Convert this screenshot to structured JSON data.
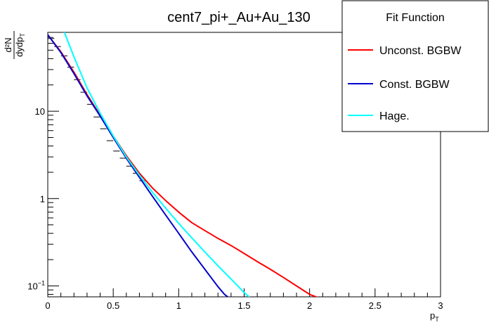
{
  "chart_data": {
    "type": "line",
    "title": "cent7_pi+_Au+Au_130",
    "xlabel_main": "p",
    "xlabel_sub": "T",
    "ylabel_num": "d²N",
    "ylabel_den_main": "dydp",
    "ylabel_den_sub": "T",
    "xlim": [
      0,
      3
    ],
    "ylim": [
      0.075,
      80
    ],
    "yscale": "log",
    "x_ticks": [
      {
        "value": 0,
        "label": "0"
      },
      {
        "value": 0.5,
        "label": "0.5"
      },
      {
        "value": 1,
        "label": "1"
      },
      {
        "value": 1.5,
        "label": "1.5"
      },
      {
        "value": 2,
        "label": "2"
      },
      {
        "value": 2.5,
        "label": "2.5"
      },
      {
        "value": 3,
        "label": "3"
      }
    ],
    "y_ticks": [
      {
        "value": 0.1,
        "label_main": "10",
        "label_sup": "−1"
      },
      {
        "value": 1,
        "label_main": "1",
        "label_sup": ""
      },
      {
        "value": 10,
        "label_main": "10",
        "label_sup": ""
      }
    ],
    "legend": {
      "title": "Fit Function",
      "position": "top-right"
    },
    "data_points": {
      "x": [
        0.025,
        0.075,
        0.125,
        0.175,
        0.225,
        0.275,
        0.325,
        0.375,
        0.425,
        0.475,
        0.525,
        0.575,
        0.625,
        0.675,
        0.725
      ],
      "y": [
        68,
        55,
        43,
        32,
        23,
        16.5,
        12,
        8.6,
        6.3,
        4.6,
        3.5,
        2.9,
        2.35,
        1.95,
        1.6
      ],
      "xerr": 0.025
    },
    "series": [
      {
        "name": "Unconst. BGBW",
        "color": "#ff0000",
        "x": [
          0.0,
          0.1,
          0.2,
          0.3,
          0.4,
          0.5,
          0.6,
          0.7,
          0.8,
          0.9,
          1.0,
          1.1,
          1.2,
          1.3,
          1.4,
          1.5,
          1.6,
          1.7,
          1.8,
          1.9,
          2.0,
          2.05,
          2.1
        ],
        "y": [
          75,
          48,
          28,
          15.5,
          9,
          5.2,
          3.1,
          1.95,
          1.32,
          0.95,
          0.7,
          0.53,
          0.43,
          0.35,
          0.29,
          0.235,
          0.19,
          0.155,
          0.125,
          0.1,
          0.08,
          0.075,
          0.07
        ]
      },
      {
        "name": "Const. BGBW",
        "color": "#0000cc",
        "x": [
          0.0,
          0.1,
          0.2,
          0.3,
          0.4,
          0.5,
          0.6,
          0.7,
          0.8,
          0.9,
          1.0,
          1.1,
          1.2,
          1.3,
          1.35,
          1.4
        ],
        "y": [
          75,
          47,
          27,
          15,
          8.8,
          5.0,
          2.9,
          1.75,
          1.06,
          0.65,
          0.4,
          0.245,
          0.155,
          0.098,
          0.08,
          0.07
        ]
      },
      {
        "name": "Hage.",
        "color": "#00ffff",
        "x": [
          0.12,
          0.2,
          0.3,
          0.4,
          0.5,
          0.6,
          0.7,
          0.8,
          0.9,
          1.0,
          1.1,
          1.2,
          1.3,
          1.4,
          1.5,
          1.56
        ],
        "y": [
          85,
          42,
          18.5,
          9.5,
          5.2,
          3.0,
          1.85,
          1.18,
          0.78,
          0.52,
          0.355,
          0.245,
          0.17,
          0.12,
          0.084,
          0.07
        ]
      }
    ]
  }
}
